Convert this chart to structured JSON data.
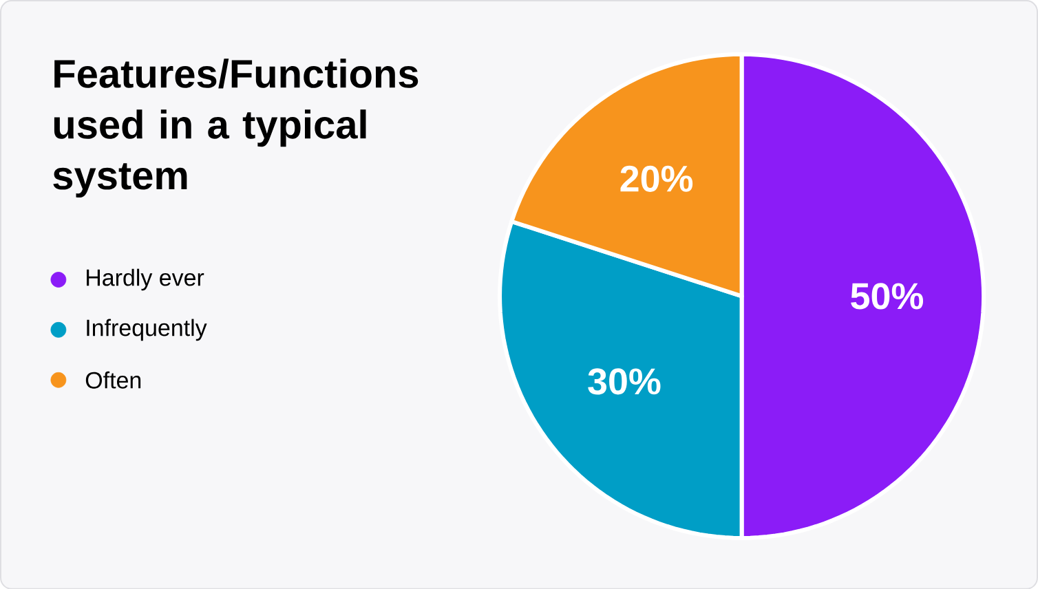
{
  "chart_data": {
    "type": "pie",
    "title": "Features/Functions used in a typical system",
    "categories": [
      "Hardly ever",
      "Infrequently",
      "Often"
    ],
    "values": [
      50,
      30,
      20
    ],
    "colors": [
      "#8b1cf7",
      "#009ec6",
      "#f7941d"
    ],
    "value_labels": [
      "50%",
      "30%",
      "20%"
    ],
    "legend": "left"
  }
}
